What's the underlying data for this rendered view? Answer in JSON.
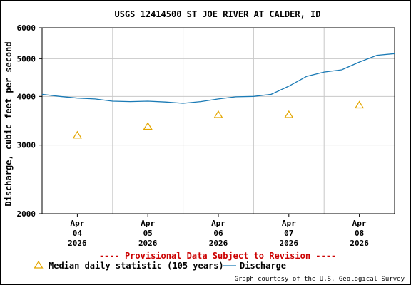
{
  "chart_data": {
    "type": "line",
    "title": "USGS 12414500 ST JOE RIVER AT CALDER, ID",
    "ylabel": "Discharge, cubic feet per second",
    "y_scale": "log",
    "ylim": [
      2000,
      6000
    ],
    "y_ticks": [
      {
        "value": 2000,
        "label": "2000"
      },
      {
        "value": 3000,
        "label": "3000"
      },
      {
        "value": 4000,
        "label": "4000"
      },
      {
        "value": 5000,
        "label": "5000"
      },
      {
        "value": 6000,
        "label": "6000"
      }
    ],
    "x_range": [
      "2026-04-03T12:00",
      "2026-04-08T12:00"
    ],
    "x_ticks": [
      {
        "value": "2026-04-04T00:00",
        "label": [
          "Apr",
          "04",
          "2026"
        ]
      },
      {
        "value": "2026-04-05T00:00",
        "label": [
          "Apr",
          "05",
          "2026"
        ]
      },
      {
        "value": "2026-04-06T00:00",
        "label": [
          "Apr",
          "06",
          "2026"
        ]
      },
      {
        "value": "2026-04-07T00:00",
        "label": [
          "Apr",
          "07",
          "2026"
        ]
      },
      {
        "value": "2026-04-08T00:00",
        "label": [
          "Apr",
          "08",
          "2026"
        ]
      }
    ],
    "grid": true,
    "series": [
      {
        "name": "Discharge",
        "color": "#1a7ab5",
        "x": [
          "2026-04-03T12:00",
          "2026-04-03T18:00",
          "2026-04-04T00:00",
          "2026-04-04T06:00",
          "2026-04-04T12:00",
          "2026-04-04T18:00",
          "2026-04-05T00:00",
          "2026-04-05T06:00",
          "2026-04-05T12:00",
          "2026-04-05T18:00",
          "2026-04-06T00:00",
          "2026-04-06T06:00",
          "2026-04-06T12:00",
          "2026-04-06T18:00",
          "2026-04-07T00:00",
          "2026-04-07T06:00",
          "2026-04-07T12:00",
          "2026-04-07T18:00",
          "2026-04-08T00:00",
          "2026-04-08T06:00",
          "2026-04-08T12:00"
        ],
        "values": [
          4050,
          4000,
          3960,
          3940,
          3890,
          3880,
          3890,
          3870,
          3840,
          3880,
          3940,
          3990,
          4000,
          4050,
          4250,
          4500,
          4620,
          4680,
          4900,
          5100,
          5150
        ]
      },
      {
        "name": "Median daily statistic (105 years)",
        "color": "#e3a600",
        "marker": "triangle",
        "x": [
          "2026-04-04T00:00",
          "2026-04-05T00:00",
          "2026-04-06T00:00",
          "2026-04-07T00:00",
          "2026-04-08T00:00"
        ],
        "values": [
          3180,
          3350,
          3590,
          3590,
          3800
        ]
      }
    ],
    "legend": {
      "placement": "bottom"
    }
  },
  "provisional_note": "---- Provisional Data Subject to Revision ----",
  "credit": "Graph courtesy of the U.S. Geological Survey"
}
